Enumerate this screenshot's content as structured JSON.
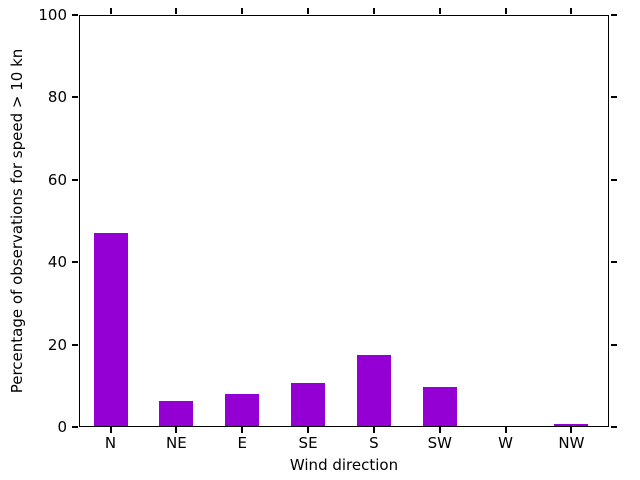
{
  "chart_data": {
    "type": "bar",
    "categories": [
      "N",
      "NE",
      "E",
      "SE",
      "S",
      "SW",
      "W",
      "NW"
    ],
    "values": [
      47.0,
      6.2,
      8.0,
      10.6,
      17.5,
      9.7,
      0.0,
      0.7
    ],
    "title": "",
    "xlabel": "Wind direction",
    "ylabel": "Percentage of observations for speed > 10 kn",
    "ylim": [
      0,
      100
    ],
    "yticks": [
      0,
      20,
      40,
      60,
      80,
      100
    ],
    "bar_color": "#9400d3",
    "axis_color": "#000000",
    "background_color": "#ffffff",
    "grid": false,
    "legend_position": "none",
    "tick_direction": "out",
    "frame": "box"
  }
}
